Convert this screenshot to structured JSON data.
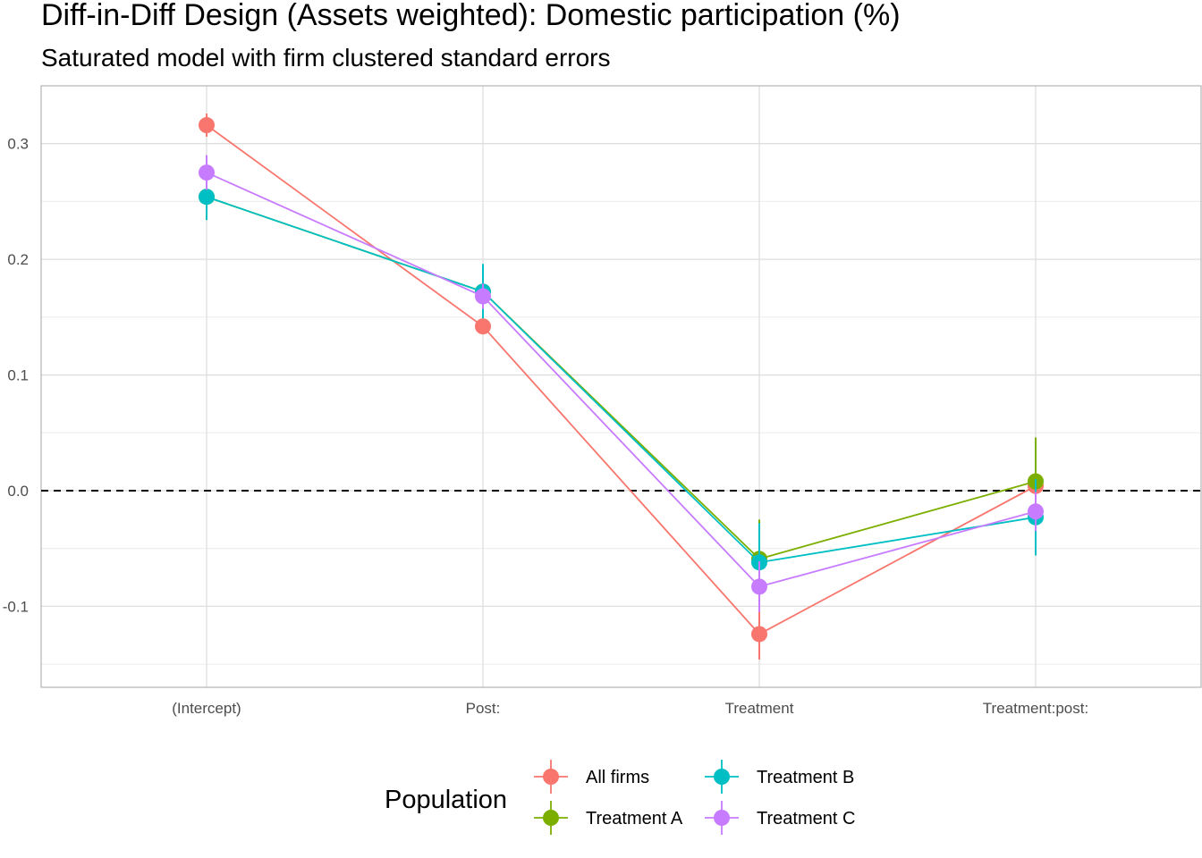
{
  "chart_data": {
    "type": "line",
    "title": "Diff-in-Diff Design (Assets weighted): Domestic participation (%)",
    "subtitle": "Saturated model with firm clustered standard errors",
    "xlabel": "",
    "ylabel": "",
    "categories": [
      "(Intercept)",
      "Post:",
      "Treatment",
      "Treatment:post:"
    ],
    "ylim": [
      -0.17,
      0.35
    ],
    "y_ticks": [
      -0.1,
      0.0,
      0.1,
      0.2,
      0.3
    ],
    "y_tick_labels": [
      "-0.1",
      "0.0",
      "0.1",
      "0.2",
      "0.3"
    ],
    "grid": true,
    "reference_line": {
      "y": 0,
      "style": "dashed"
    },
    "legend": {
      "title": "Population",
      "position": "bottom"
    },
    "series": [
      {
        "name": "All firms",
        "color": "#F8766D",
        "values": [
          0.316,
          0.142,
          -0.124,
          0.004
        ],
        "lower": [
          0.306,
          0.136,
          -0.146,
          -0.004
        ],
        "upper": [
          0.326,
          0.148,
          -0.102,
          0.012
        ]
      },
      {
        "name": "Treatment A",
        "color": "#7CAE00",
        "values": [
          0.254,
          0.172,
          -0.059,
          0.008
        ],
        "lower": [
          0.234,
          0.149,
          -0.093,
          -0.03
        ],
        "upper": [
          0.274,
          0.195,
          -0.025,
          0.046
        ]
      },
      {
        "name": "Treatment B",
        "color": "#00BFC4",
        "values": [
          0.254,
          0.172,
          -0.062,
          -0.023
        ],
        "lower": [
          0.234,
          0.149,
          -0.096,
          -0.056
        ],
        "upper": [
          0.274,
          0.196,
          -0.028,
          0.01
        ]
      },
      {
        "name": "Treatment C",
        "color": "#C77CFF",
        "values": [
          0.275,
          0.168,
          -0.083,
          -0.018
        ],
        "lower": [
          0.26,
          0.157,
          -0.105,
          -0.035
        ],
        "upper": [
          0.29,
          0.179,
          -0.061,
          -0.001
        ]
      }
    ]
  }
}
